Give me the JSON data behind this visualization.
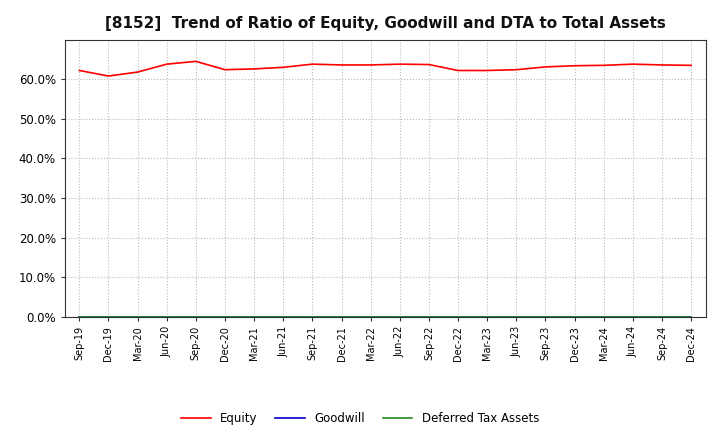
{
  "title": "[8152]  Trend of Ratio of Equity, Goodwill and DTA to Total Assets",
  "x_labels": [
    "Sep-19",
    "Dec-19",
    "Mar-20",
    "Jun-20",
    "Sep-20",
    "Dec-20",
    "Mar-21",
    "Jun-21",
    "Sep-21",
    "Dec-21",
    "Mar-22",
    "Jun-22",
    "Sep-22",
    "Dec-22",
    "Mar-23",
    "Jun-23",
    "Sep-23",
    "Dec-23",
    "Mar-24",
    "Jun-24",
    "Sep-24",
    "Dec-24"
  ],
  "equity": [
    0.622,
    0.608,
    0.618,
    0.638,
    0.645,
    0.624,
    0.626,
    0.63,
    0.638,
    0.636,
    0.636,
    0.638,
    0.637,
    0.622,
    0.622,
    0.624,
    0.631,
    0.634,
    0.635,
    0.638,
    0.636,
    0.635
  ],
  "goodwill": [
    0.0,
    0.0,
    0.0,
    0.0,
    0.0,
    0.0,
    0.0,
    0.0,
    0.0,
    0.0,
    0.0,
    0.0,
    0.0,
    0.0,
    0.0,
    0.0,
    0.0,
    0.0,
    0.0,
    0.0,
    0.0,
    0.0
  ],
  "dta": [
    0.0,
    0.0,
    0.0,
    0.0,
    0.0,
    0.0,
    0.0,
    0.0,
    0.0,
    0.0,
    0.0,
    0.0,
    0.0,
    0.0,
    0.0,
    0.0,
    0.0,
    0.0,
    0.0,
    0.0,
    0.0,
    0.0
  ],
  "equity_color": "#FF0000",
  "goodwill_color": "#0000CD",
  "dta_color": "#228B22",
  "ylim": [
    0.0,
    0.7
  ],
  "yticks": [
    0.0,
    0.1,
    0.2,
    0.3,
    0.4,
    0.5,
    0.6
  ],
  "background_color": "#FFFFFF",
  "plot_bg_color": "#FFFFFF",
  "grid_color": "#BBBBBB",
  "title_fontsize": 11,
  "legend_labels": [
    "Equity",
    "Goodwill",
    "Deferred Tax Assets"
  ]
}
